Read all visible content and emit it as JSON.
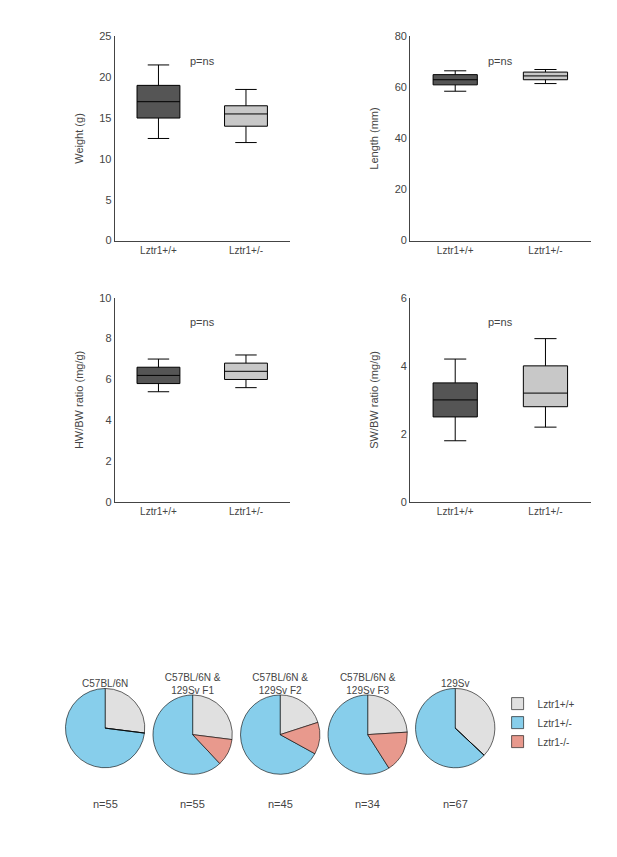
{
  "chart_data": [
    {
      "type": "box",
      "ylabel": "Weight (g)",
      "categories": [
        "Lztr1+/+",
        "Lztr1+/-"
      ],
      "q1": [
        15.0,
        14.0
      ],
      "median": [
        17.0,
        15.5
      ],
      "q3": [
        19.0,
        16.5
      ],
      "whisker_low": [
        12.5,
        12.0
      ],
      "whisker_high": [
        21.5,
        18.5
      ],
      "colors": [
        "#555555",
        "#c8c8c8"
      ],
      "ylim": [
        0,
        25
      ],
      "yticks": [
        0,
        5,
        10,
        15,
        20,
        25
      ],
      "annotations": [
        "p=ns"
      ],
      "grid": false
    },
    {
      "type": "box",
      "ylabel": "Length (mm)",
      "categories": [
        "Lztr1+/+",
        "Lztr1+/-"
      ],
      "q1": [
        61.0,
        63.0
      ],
      "median": [
        63.0,
        64.5
      ],
      "q3": [
        65.0,
        66.0
      ],
      "whisker_low": [
        58.5,
        61.5
      ],
      "whisker_high": [
        66.5,
        67.0
      ],
      "colors": [
        "#555555",
        "#c8c8c8"
      ],
      "ylim": [
        0,
        80
      ],
      "yticks": [
        0,
        20,
        40,
        60,
        80
      ],
      "annotations": [
        "p=ns"
      ],
      "grid": false
    },
    {
      "type": "box",
      "ylabel": "HW/BW ratio (mg/g)",
      "categories": [
        "Lztr1+/+",
        "Lztr1+/-"
      ],
      "q1": [
        5.8,
        6.0
      ],
      "median": [
        6.2,
        6.4
      ],
      "q3": [
        6.6,
        6.8
      ],
      "whisker_low": [
        5.4,
        5.6
      ],
      "whisker_high": [
        7.0,
        7.2
      ],
      "colors": [
        "#555555",
        "#c8c8c8"
      ],
      "ylim": [
        0,
        10
      ],
      "yticks": [
        0,
        2,
        4,
        6,
        8,
        10
      ],
      "annotations": [
        "p=ns"
      ],
      "grid": false
    },
    {
      "type": "box",
      "ylabel": "SW/BW ratio (mg/g)",
      "categories": [
        "Lztr1+/+",
        "Lztr1+/-"
      ],
      "q1": [
        2.5,
        2.8
      ],
      "median": [
        3.0,
        3.2
      ],
      "q3": [
        3.5,
        4.0
      ],
      "whisker_low": [
        1.8,
        2.2
      ],
      "whisker_high": [
        4.2,
        4.8
      ],
      "colors": [
        "#555555",
        "#c8c8c8"
      ],
      "ylim": [
        0,
        6
      ],
      "yticks": [
        0,
        2,
        4,
        6
      ],
      "annotations": [
        "p=ns"
      ],
      "grid": false
    },
    {
      "type": "pie",
      "title": "C57BL/6N",
      "categories": [
        "Lztr1+/+",
        "Lztr1+/-",
        "Lztr1-/-"
      ],
      "values": [
        0.27,
        0.73,
        0.0
      ],
      "colors": [
        "#e0e0e0",
        "#87ceeb",
        "#e8998d"
      ],
      "annotations": [
        "n=55"
      ],
      "legend": "right"
    },
    {
      "type": "pie",
      "title": "C57BL/6N &\n129Sv F1",
      "categories": [
        "Lztr1+/+",
        "Lztr1+/-",
        "Lztr1-/-"
      ],
      "values": [
        0.27,
        0.62,
        0.11
      ],
      "colors": [
        "#e0e0e0",
        "#87ceeb",
        "#e8998d"
      ],
      "annotations": [
        "n=55"
      ],
      "legend": "right"
    },
    {
      "type": "pie",
      "title": "C57BL/6N &\n129Sv F2",
      "categories": [
        "Lztr1+/+",
        "Lztr1+/-",
        "Lztr1-/-"
      ],
      "values": [
        0.2,
        0.67,
        0.13
      ],
      "colors": [
        "#e0e0e0",
        "#87ceeb",
        "#e8998d"
      ],
      "annotations": [
        "n=45"
      ],
      "legend": "right"
    },
    {
      "type": "pie",
      "title": "C57BL/6N &\n129Sv F3",
      "categories": [
        "Lztr1+/+",
        "Lztr1+/-",
        "Lztr1-/-"
      ],
      "values": [
        0.24,
        0.59,
        0.17
      ],
      "colors": [
        "#e0e0e0",
        "#87ceeb",
        "#e8998d"
      ],
      "annotations": [
        "n=34"
      ],
      "legend": "right"
    },
    {
      "type": "pie",
      "title": "129Sv",
      "categories": [
        "Lztr1+/+",
        "Lztr1+/-",
        "Lztr1-/-"
      ],
      "values": [
        0.37,
        0.63,
        0.0
      ],
      "colors": [
        "#e0e0e0",
        "#87ceeb",
        "#e8998d"
      ],
      "annotations": [
        "n=67"
      ],
      "legend": "right"
    }
  ]
}
